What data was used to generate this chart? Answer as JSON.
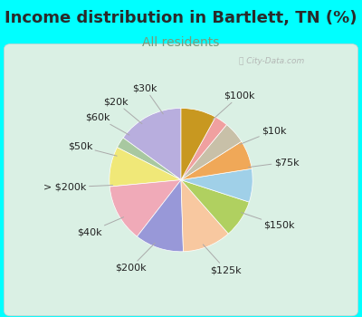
{
  "title": "Income distribution in Bartlett, TN (%)",
  "subtitle": "All residents",
  "bg_color": "#00FFFF",
  "chart_bg": "#e8f5ee",
  "title_color": "#2a2a2a",
  "subtitle_color": "#7a9a7a",
  "labels": [
    "$100k",
    "$10k",
    "$75k",
    "$150k",
    "$125k",
    "$200k",
    "$40k",
    "> $200k",
    "$50k",
    "$60k",
    "$20k",
    "$30k"
  ],
  "sizes": [
    15.0,
    2.5,
    9.0,
    13.0,
    11.0,
    11.0,
    8.5,
    7.5,
    6.5,
    5.0,
    3.0,
    8.0
  ],
  "colors": [
    "#b8aede",
    "#a8c8a0",
    "#f0e878",
    "#f0aab8",
    "#9898d8",
    "#f8c8a0",
    "#b0d060",
    "#a0d0e8",
    "#f0a858",
    "#c8c0a8",
    "#f0a0a0",
    "#c89820"
  ],
  "startangle": 90,
  "title_fontsize": 13,
  "subtitle_fontsize": 10,
  "label_fontsize": 8,
  "label_color": "#222222",
  "watermark": "ⓘ City-Data.com"
}
